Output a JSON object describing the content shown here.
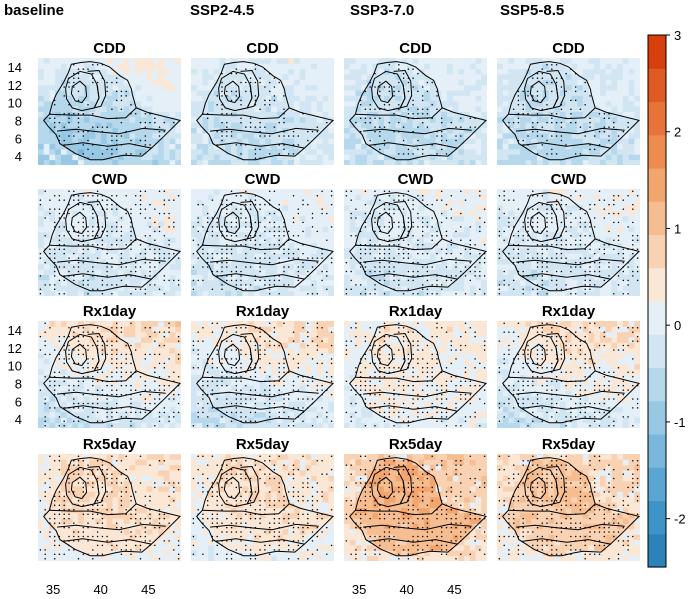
{
  "chart_data": {
    "type": "heatmap",
    "description_rows": [
      "CDD",
      "CWD",
      "Rx1day",
      "Rx5day"
    ],
    "columns": [
      "baseline",
      "SSP2-4.5",
      "SSP3-7.0",
      "SSP5-8.5"
    ],
    "rows": [
      "CDD",
      "CWD",
      "Rx1day",
      "Rx5day"
    ],
    "y_ticks": [
      "14",
      "12",
      "10",
      "8",
      "6",
      "4"
    ],
    "y_tick_values": [
      14,
      12,
      10,
      8,
      6,
      4
    ],
    "x_ticks": [
      "35",
      "40",
      "45"
    ],
    "x_tick_values": [
      35,
      40,
      45
    ],
    "xlim": [
      33,
      48
    ],
    "ylim": [
      3,
      15
    ],
    "colorbar": {
      "ticks": [
        "3",
        "2",
        "1",
        "0",
        "-1",
        "-2"
      ],
      "tick_values": [
        3,
        2,
        1,
        0,
        -1,
        -2
      ],
      "range": [
        -2.5,
        3
      ],
      "colors_low_to_high": [
        "#2b83ba",
        "#3f94c7",
        "#5aa5d2",
        "#79b7dc",
        "#97c8e4",
        "#b5d8ec",
        "#d1e6f2",
        "#e4eff7",
        "#fbe7d6",
        "#f9d2b3",
        "#f6bd90",
        "#f3a56e",
        "#ee8c50",
        "#e87237",
        "#e15a21",
        "#d73f0c"
      ]
    },
    "panels": [
      {
        "row": "CDD",
        "col": "baseline",
        "dominant_sign": "mixed",
        "approx_value": -0.5
      },
      {
        "row": "CDD",
        "col": "SSP2-4.5",
        "dominant_sign": "negative",
        "approx_value": -0.3
      },
      {
        "row": "CDD",
        "col": "SSP3-7.0",
        "dominant_sign": "negative",
        "approx_value": -0.4
      },
      {
        "row": "CDD",
        "col": "SSP5-8.5",
        "dominant_sign": "negative",
        "approx_value": -0.4
      },
      {
        "row": "CWD",
        "col": "baseline",
        "dominant_sign": "negative",
        "approx_value": -0.1
      },
      {
        "row": "CWD",
        "col": "SSP2-4.5",
        "dominant_sign": "negative",
        "approx_value": -0.1
      },
      {
        "row": "CWD",
        "col": "SSP3-7.0",
        "dominant_sign": "negative",
        "approx_value": -0.1
      },
      {
        "row": "CWD",
        "col": "SSP5-8.5",
        "dominant_sign": "negative",
        "approx_value": -0.1
      },
      {
        "row": "Rx1day",
        "col": "baseline",
        "dominant_sign": "mixed",
        "approx_value": 0.2
      },
      {
        "row": "Rx1day",
        "col": "SSP2-4.5",
        "dominant_sign": "mixed",
        "approx_value": 0.1
      },
      {
        "row": "Rx1day",
        "col": "SSP3-7.0",
        "dominant_sign": "positive",
        "approx_value": 0.3
      },
      {
        "row": "Rx1day",
        "col": "SSP5-8.5",
        "dominant_sign": "mixed",
        "approx_value": 0.2
      },
      {
        "row": "Rx5day",
        "col": "baseline",
        "dominant_sign": "positive",
        "approx_value": 0.6
      },
      {
        "row": "Rx5day",
        "col": "SSP2-4.5",
        "dominant_sign": "positive",
        "approx_value": 0.5
      },
      {
        "row": "Rx5day",
        "col": "SSP3-7.0",
        "dominant_sign": "positive",
        "approx_value": 1.2
      },
      {
        "row": "Rx5day",
        "col": "SSP5-8.5",
        "dominant_sign": "positive",
        "approx_value": 0.9
      }
    ],
    "stippling": "black dots mark grid cells",
    "xlabel": "",
    "ylabel": ""
  }
}
